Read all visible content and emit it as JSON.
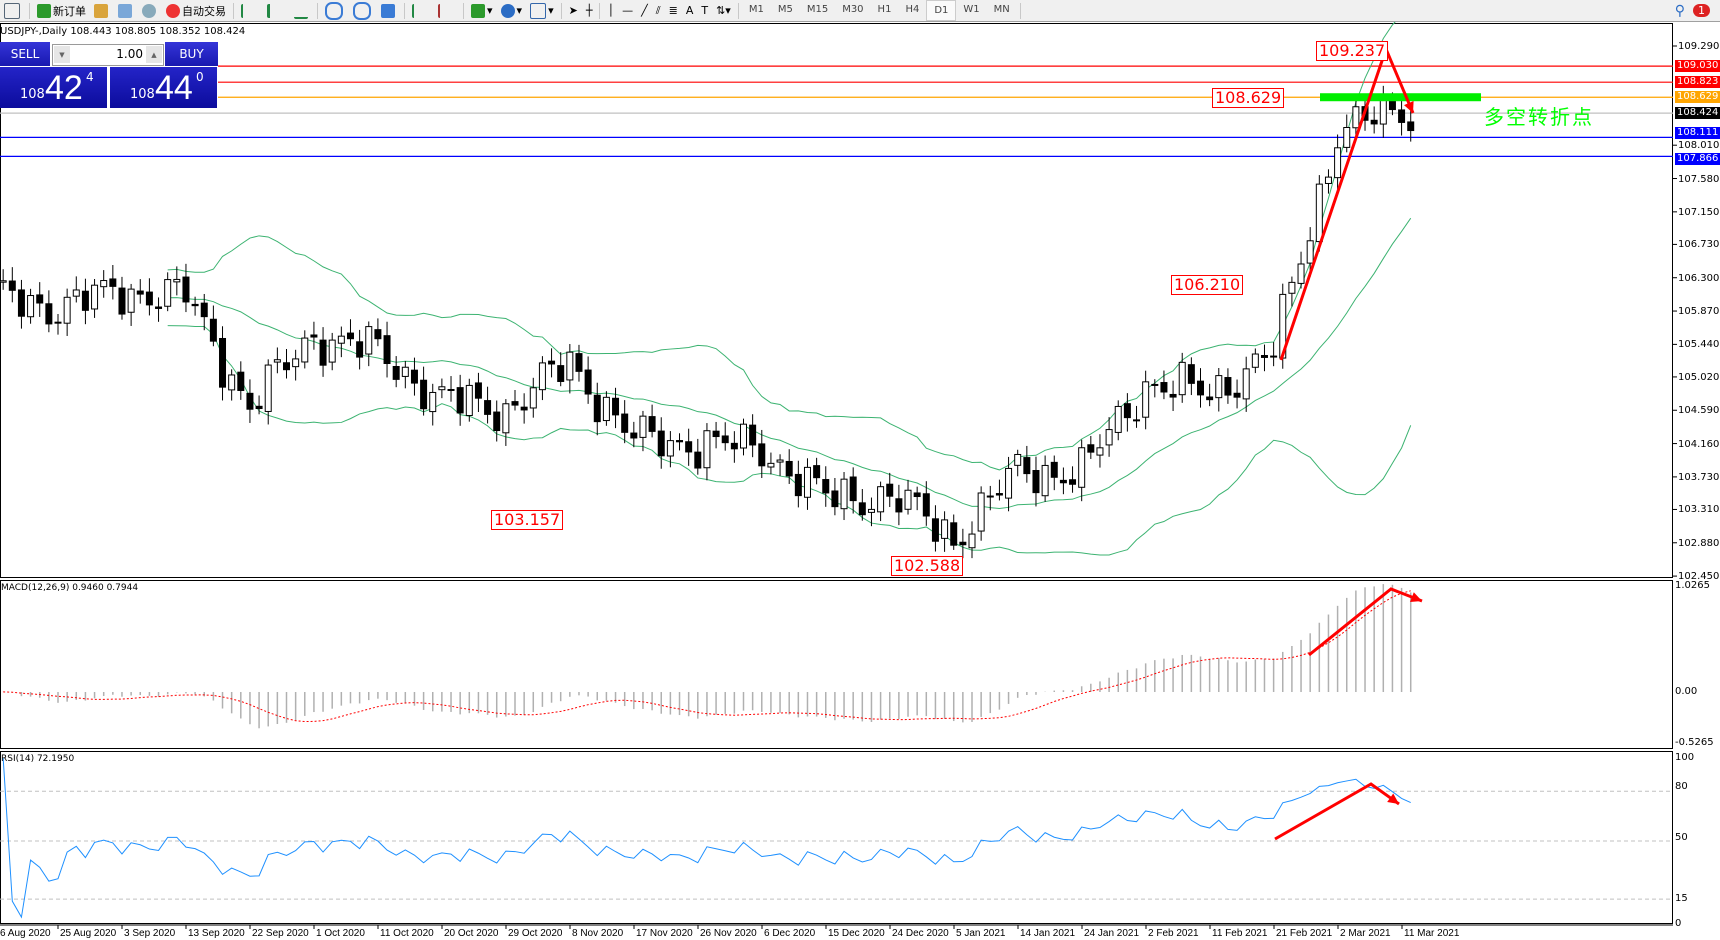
{
  "toolbar": {
    "new_order": "新订单",
    "auto_trading": "自动交易",
    "timeframes": [
      "M1",
      "M5",
      "M15",
      "M30",
      "H1",
      "H4",
      "D1",
      "W1",
      "MN"
    ],
    "active_timeframe": "D1",
    "notification_count": "1"
  },
  "chart": {
    "symbol_line": "USDJPY-,Daily  108.443 108.805 108.352 108.424",
    "price_axis": [
      "109.290",
      "108.010",
      "107.580",
      "107.150",
      "106.730",
      "106.300",
      "105.870",
      "105.440",
      "105.020",
      "104.590",
      "104.160",
      "103.730",
      "103.310",
      "102.880",
      "102.450"
    ],
    "price_tags": [
      {
        "value": "109.030",
        "color": "#ff0000"
      },
      {
        "value": "108.823",
        "color": "#ff0000"
      },
      {
        "value": "108.629",
        "color": "#ffa500"
      },
      {
        "value": "108.424",
        "color": "#000000"
      },
      {
        "value": "108.111",
        "color": "#0000ff"
      },
      {
        "value": "107.866",
        "color": "#0000ff"
      }
    ],
    "labels": [
      "109.237",
      "108.629",
      "106.210",
      "103.157",
      "102.588"
    ],
    "annotation": "多空转折点",
    "annotation_color": "#00ff00",
    "dates": [
      "6 Aug 2020",
      "25 Aug 2020",
      "3 Sep 2020",
      "13 Sep 2020",
      "22 Sep 2020",
      "1 Oct 2020",
      "11 Oct 2020",
      "20 Oct 2020",
      "29 Oct 2020",
      "8 Nov 2020",
      "17 Nov 2020",
      "26 Nov 2020",
      "6 Dec 2020",
      "15 Dec 2020",
      "24 Dec 2020",
      "5 Jan 2021",
      "14 Jan 2021",
      "24 Jan 2021",
      "2 Feb 2021",
      "11 Feb 2021",
      "21 Feb 2021",
      "2 Mar 2021",
      "11 Mar 2021"
    ],
    "price_path": [
      106.06,
      105.92,
      106.13,
      106.06,
      104.64,
      105.56,
      105.35,
      104.72,
      104.6,
      105.2,
      104.22,
      104.16,
      104.1,
      103.45,
      103.5,
      102.94,
      103.8,
      103.8,
      104.93,
      104.8,
      105.35,
      108.18,
      108.46
    ]
  },
  "trade": {
    "sell_label": "SELL",
    "buy_label": "BUY",
    "lot": "1.00",
    "sell_prefix": "108",
    "sell_main": "42",
    "sell_sup": "4",
    "buy_prefix": "108",
    "buy_main": "44",
    "buy_sup": "0"
  },
  "macd": {
    "title": "MACD(12,26,9) 0.9460 0.7944",
    "axis": [
      "1.0265",
      "0.00",
      "-0.5265"
    ]
  },
  "rsi": {
    "title": "RSI(14) 72.1950",
    "axis": [
      "100",
      "80",
      "50",
      "15",
      "0"
    ]
  },
  "colors": {
    "bull": "#ffffff",
    "bear": "#000000",
    "bands": "#3cb371",
    "rsi": "#1e90ff",
    "signal": "#ff0000",
    "arrow": "#ff0000"
  }
}
